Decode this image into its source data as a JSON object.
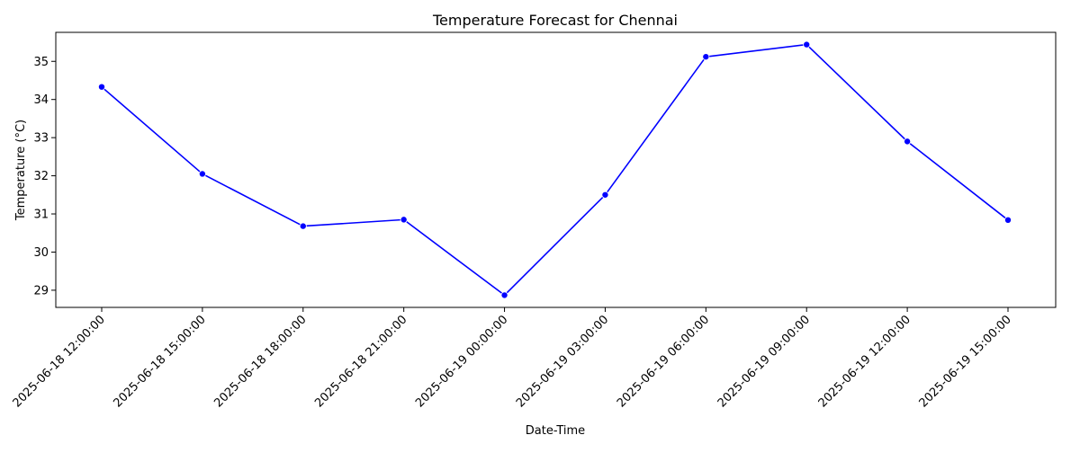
{
  "chart_data": {
    "type": "line",
    "title": "Temperature Forecast for Chennai",
    "xlabel": "Date-Time",
    "ylabel": "Temperature (°C)",
    "categories": [
      "2025-06-18 12:00:00",
      "2025-06-18 15:00:00",
      "2025-06-18 18:00:00",
      "2025-06-18 21:00:00",
      "2025-06-19 00:00:00",
      "2025-06-19 03:00:00",
      "2025-06-19 06:00:00",
      "2025-06-19 09:00:00",
      "2025-06-19 12:00:00",
      "2025-06-19 15:00:00"
    ],
    "series": [
      {
        "values": [
          34.33,
          32.05,
          30.68,
          30.85,
          28.87,
          31.5,
          35.12,
          35.44,
          32.9,
          30.84
        ],
        "color": "#0000ff",
        "marker": "circle"
      }
    ],
    "yticks": [
      29,
      30,
      31,
      32,
      33,
      34,
      35
    ],
    "ylim": [
      28.55,
      35.76
    ],
    "grid": false,
    "legend": "none"
  }
}
